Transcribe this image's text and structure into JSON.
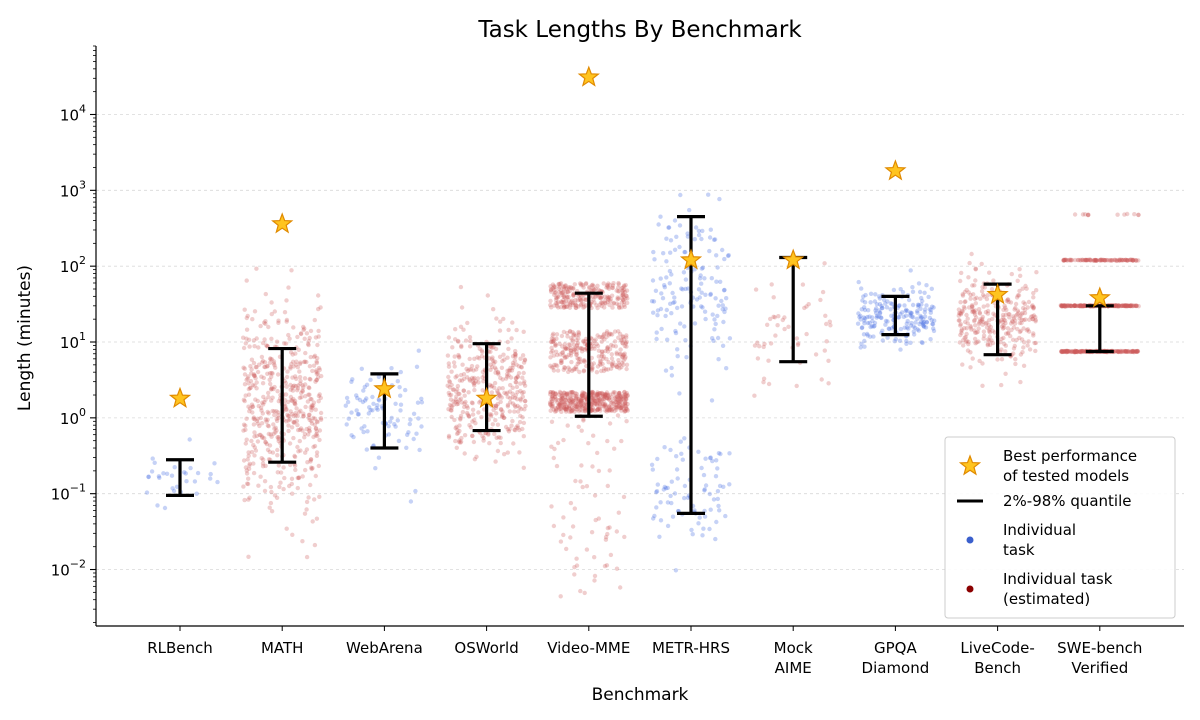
{
  "chart_data": {
    "type": "scatter",
    "title": "Task Lengths By Benchmark",
    "xlabel": "Benchmark",
    "ylabel": "Length (minutes)",
    "yscale": "log",
    "ylim": [
      0.0018,
      80000
    ],
    "y_ticks": [
      {
        "value": 0.01,
        "base": "10",
        "exp": "−2"
      },
      {
        "value": 0.1,
        "base": "10",
        "exp": "−1"
      },
      {
        "value": 1,
        "base": "10",
        "exp": "0"
      },
      {
        "value": 10,
        "base": "10",
        "exp": "1"
      },
      {
        "value": 100,
        "base": "10",
        "exp": "2"
      },
      {
        "value": 1000,
        "base": "10",
        "exp": "3"
      },
      {
        "value": 10000,
        "base": "10",
        "exp": "4"
      }
    ],
    "grid": "horizontal-major",
    "legend_position": "lower-right",
    "colors": {
      "task": "#4169e1",
      "task_estimated": "#cd5c5c",
      "legend_task": "#3a5fcd",
      "legend_task_estimated": "#8b0000",
      "star_fill": "#ffc41f",
      "star_edge": "#e08a00",
      "quantile": "#000000",
      "grid": "#d9d9d9"
    },
    "benchmarks": [
      {
        "name_lines": [
          "RLBench"
        ],
        "estimated": false,
        "q02": 0.095,
        "q98": 0.28,
        "best": 1.8,
        "dist": {
          "type": "normal",
          "center": 0.16,
          "spread": 0.18,
          "n": 30
        }
      },
      {
        "name_lines": [
          "MATH"
        ],
        "estimated": true,
        "q02": 0.26,
        "q98": 8.2,
        "best": 360,
        "dist": {
          "type": "normal",
          "center": 1.5,
          "spread": 0.65,
          "n": 520
        }
      },
      {
        "name_lines": [
          "WebArena"
        ],
        "estimated": false,
        "q02": 0.4,
        "q98": 3.8,
        "best": 2.4,
        "dist": {
          "type": "normal",
          "center": 1.3,
          "spread": 0.35,
          "n": 90
        }
      },
      {
        "name_lines": [
          "OSWorld"
        ],
        "estimated": true,
        "q02": 0.68,
        "q98": 9.5,
        "best": 1.8,
        "dist": {
          "type": "normal",
          "center": 2.4,
          "spread": 0.42,
          "n": 380
        }
      },
      {
        "name_lines": [
          "Video-MME"
        ],
        "estimated": true,
        "q02": 1.05,
        "q98": 44,
        "best": 31000,
        "dist": {
          "type": "bands",
          "bands": [
            [
              1.2,
              2.2,
              0.45
            ],
            [
              4.0,
              14.0,
              0.3
            ],
            [
              28.0,
              60.0,
              0.25
            ]
          ],
          "outliers": {
            "lo": 0.004,
            "hi": 1.1,
            "n": 70
          },
          "n": 900
        }
      },
      {
        "name_lines": [
          "METR-HRS"
        ],
        "estimated": false,
        "q02": 0.055,
        "q98": 450,
        "best": 120,
        "dist": {
          "type": "bimodal",
          "modes": [
            [
              0.1,
              0.32,
              0.38
            ],
            [
              50,
              0.55,
              0.62
            ]
          ],
          "n": 230
        }
      },
      {
        "name_lines": [
          "Mock",
          "AIME"
        ],
        "estimated": true,
        "q02": 5.5,
        "q98": 130,
        "best": 120,
        "dist": {
          "type": "normal",
          "center": 12,
          "spread": 0.35,
          "n": 50
        }
      },
      {
        "name_lines": [
          "GPQA",
          "Diamond"
        ],
        "estimated": false,
        "q02": 12.5,
        "q98": 40,
        "best": 1800,
        "dist": {
          "type": "normal",
          "center": 22,
          "spread": 0.17,
          "n": 200
        }
      },
      {
        "name_lines": [
          "LiveCode-",
          "Bench"
        ],
        "estimated": true,
        "q02": 6.8,
        "q98": 58,
        "best": 42,
        "dist": {
          "type": "normal",
          "center": 20,
          "spread": 0.3,
          "n": 300
        }
      },
      {
        "name_lines": [
          "SWE-bench",
          "Verified"
        ],
        "estimated": true,
        "q02": 7.5,
        "q98": 30,
        "best": 38,
        "dist": {
          "type": "lines",
          "levels": [
            [
              7.5,
              0.42
            ],
            [
              30,
              0.38
            ],
            [
              120,
              0.18
            ],
            [
              480,
              0.02
            ]
          ],
          "n": 500
        }
      }
    ],
    "legend": [
      {
        "kind": "star",
        "lines": [
          "Best performance",
          "of tested models"
        ]
      },
      {
        "kind": "line",
        "lines": [
          "2%-98% quantile"
        ]
      },
      {
        "kind": "dot-blue",
        "lines": [
          "Individual",
          "task"
        ]
      },
      {
        "kind": "dot-red",
        "lines": [
          "Individual task",
          "(estimated)"
        ]
      }
    ]
  }
}
